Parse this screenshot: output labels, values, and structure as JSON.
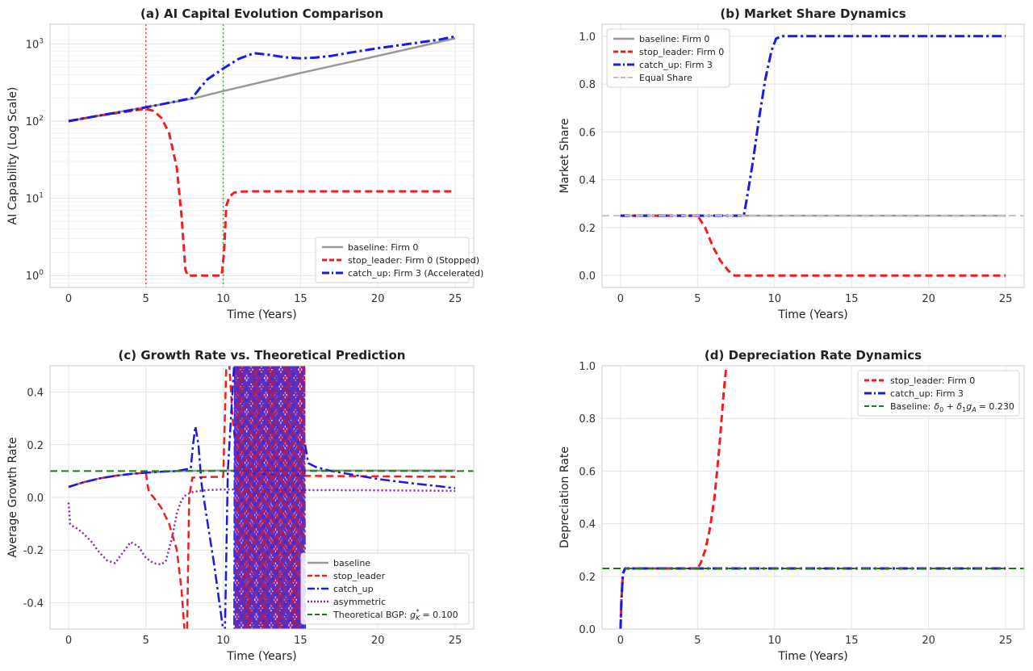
{
  "chart_data": [
    {
      "id": "a",
      "type": "line",
      "title": "(a) AI Capital Evolution Comparison",
      "xlabel": "Time (Years)",
      "ylabel": "AI Capability (Log Scale)",
      "yscale": "log",
      "xlim": [
        -1.2,
        26.2
      ],
      "ylim": [
        0.7,
        1800
      ],
      "xticks": [
        0,
        5,
        10,
        15,
        20,
        25
      ],
      "xtick_labels": [
        "0",
        "5",
        "10",
        "15",
        "20",
        "25"
      ],
      "yticks": [
        1,
        10,
        100,
        1000
      ],
      "ytick_labels": [
        "10^0",
        "10^1",
        "10^2",
        "10^3"
      ],
      "legend_position": "bottom-right",
      "vlines": [
        {
          "x": 5,
          "color": "#e8504a",
          "style": "dotted"
        },
        {
          "x": 10,
          "color": "#4caf50",
          "style": "dotted"
        }
      ],
      "series": [
        {
          "name": "baseline: Firm 0",
          "color": "#999999",
          "style": "solid",
          "width": 2.5,
          "x": [
            0,
            2,
            4,
            6,
            8,
            10,
            15,
            20,
            25
          ],
          "y": [
            100,
            118,
            140,
            165,
            195,
            245,
            420,
            700,
            1180
          ]
        },
        {
          "name": "stop_leader: Firm 0 (Stopped)",
          "color": "#f01e1e",
          "style": "dashed",
          "width": 3,
          "x": [
            0,
            2,
            4,
            5,
            5.5,
            6,
            6.5,
            7,
            7.3,
            7.55,
            7.7,
            8,
            9,
            9.9,
            10.05,
            10.2,
            10.4,
            10.7,
            11,
            12,
            15,
            20,
            25
          ],
          "y": [
            100,
            118,
            135,
            145,
            135,
            110,
            70,
            25,
            6,
            1.2,
            1,
            1,
            1,
            1,
            2,
            8,
            10.5,
            11.8,
            12.2,
            12.3,
            12.3,
            12.3,
            12.3
          ]
        },
        {
          "name": "catch_up: Firm 3 (Accelerated)",
          "color": "#1a1ae6",
          "style": "dashdot",
          "width": 3,
          "x": [
            0,
            2,
            4,
            6,
            7.5,
            8,
            8.5,
            9,
            10,
            11,
            12,
            13,
            14,
            15,
            16,
            17,
            18,
            20,
            22,
            24,
            25
          ],
          "y": [
            100,
            118,
            138,
            165,
            190,
            200,
            270,
            350,
            480,
            640,
            760,
            720,
            670,
            650,
            665,
            700,
            760,
            880,
            1000,
            1140,
            1250
          ]
        }
      ]
    },
    {
      "id": "b",
      "type": "line",
      "title": "(b) Market Share Dynamics",
      "xlabel": "Time (Years)",
      "ylabel": "Market Share",
      "xlim": [
        -1.2,
        26.2
      ],
      "ylim": [
        -0.05,
        1.05
      ],
      "xticks": [
        0,
        5,
        10,
        15,
        20,
        25
      ],
      "xtick_labels": [
        "0",
        "5",
        "10",
        "15",
        "20",
        "25"
      ],
      "yticks": [
        0.0,
        0.2,
        0.4,
        0.6,
        0.8,
        1.0
      ],
      "ytick_labels": [
        "0.0",
        "0.2",
        "0.4",
        "0.6",
        "0.8",
        "1.0"
      ],
      "legend_position": "top-left",
      "series": [
        {
          "name": "baseline: Firm 0",
          "color": "#999999",
          "style": "solid",
          "width": 2.5,
          "x": [
            0,
            25
          ],
          "y": [
            0.25,
            0.25
          ]
        },
        {
          "name": "stop_leader: Firm 0",
          "color": "#f01e1e",
          "style": "dashed",
          "width": 3,
          "x": [
            0,
            5,
            5.5,
            6,
            6.5,
            7,
            7.4,
            8,
            25
          ],
          "y": [
            0.25,
            0.25,
            0.2,
            0.12,
            0.06,
            0.02,
            0.0,
            0.0,
            0.0
          ]
        },
        {
          "name": "catch_up: Firm 3",
          "color": "#1a1ae6",
          "style": "dashdot",
          "width": 3,
          "x": [
            0,
            8,
            8.2,
            8.6,
            9,
            9.4,
            9.8,
            10.1,
            10.5,
            25
          ],
          "y": [
            0.25,
            0.25,
            0.32,
            0.48,
            0.66,
            0.82,
            0.94,
            0.99,
            1.0,
            1.0
          ]
        },
        {
          "name": "Equal Share",
          "color": "#c2c2c2",
          "style": "dashed",
          "width": 2,
          "x": [
            -1.2,
            26.2
          ],
          "y": [
            0.25,
            0.25
          ]
        }
      ]
    },
    {
      "id": "c",
      "type": "line",
      "title": "(c) Growth Rate vs. Theoretical Prediction",
      "xlabel": "Time (Years)",
      "ylabel": "Average Growth Rate",
      "xlim": [
        -1.2,
        26.2
      ],
      "ylim": [
        -0.5,
        0.5
      ],
      "xticks": [
        0,
        5,
        10,
        15,
        20,
        25
      ],
      "xtick_labels": [
        "0",
        "5",
        "10",
        "15",
        "20",
        "25"
      ],
      "yticks": [
        -0.4,
        -0.2,
        0.0,
        0.2,
        0.4
      ],
      "ytick_labels": [
        "-0.4",
        "-0.2",
        "0.0",
        "0.2",
        "0.4"
      ],
      "legend_position": "bottom-right",
      "oscillation": {
        "series": "catch_up",
        "x_start": 10.7,
        "x_end": 15.3,
        "low": -0.5,
        "high": 0.5
      },
      "series": [
        {
          "name": "baseline",
          "color": "#999999",
          "style": "solid",
          "width": 2.5,
          "x": [
            0,
            1,
            2,
            3,
            4,
            5,
            6,
            7,
            8,
            10,
            15,
            20,
            25
          ],
          "y": [
            0.04,
            0.058,
            0.072,
            0.082,
            0.089,
            0.094,
            0.098,
            0.1,
            0.101,
            0.102,
            0.102,
            0.102,
            0.102
          ]
        },
        {
          "name": "stop_leader",
          "color": "#f01e1e",
          "style": "dashed",
          "width": 2.5,
          "x": [
            0,
            1,
            2,
            3,
            4,
            5,
            5.1,
            5.2,
            5.5,
            6,
            6.5,
            7,
            7.3,
            7.55,
            7.65,
            7.8,
            8,
            9,
            10,
            10.2,
            10.3,
            10.4,
            10.6,
            10.8,
            11,
            11.5,
            12,
            15,
            20,
            25
          ],
          "y": [
            0.04,
            0.058,
            0.072,
            0.082,
            0.089,
            0.094,
            0.05,
            0.02,
            0.0,
            -0.04,
            -0.1,
            -0.2,
            -0.35,
            -0.55,
            -0.55,
            0.0,
            0.075,
            0.078,
            0.078,
            0.5,
            0.55,
            0.5,
            0.3,
            0.2,
            0.14,
            0.1,
            0.09,
            0.082,
            0.08,
            0.078
          ]
        },
        {
          "name": "catch_up",
          "color": "#1a1ae6",
          "style": "dashdot",
          "width": 2.5,
          "x": [
            0,
            1,
            2,
            3,
            4,
            5,
            6,
            7,
            7.9,
            8.05,
            8.2,
            8.4,
            8.6,
            9,
            9.4,
            9.8,
            10.1,
            10.3,
            10.7
          ],
          "y": [
            0.04,
            0.058,
            0.072,
            0.082,
            0.089,
            0.094,
            0.098,
            0.1,
            0.11,
            0.2,
            0.27,
            0.2,
            0.05,
            -0.1,
            -0.25,
            -0.42,
            -0.55,
            0.1,
            0.5
          ],
          "tail_x": [
            15.3,
            15.5,
            16,
            17,
            18,
            20,
            22,
            24,
            25
          ],
          "tail_y": [
            0.2,
            0.13,
            0.115,
            0.1,
            0.09,
            0.07,
            0.055,
            0.042,
            0.035
          ]
        },
        {
          "name": "asymmetric",
          "color": "#8e24aa",
          "style": "dotted",
          "width": 2.5,
          "x": [
            0,
            0.1,
            0.3,
            0.6,
            1,
            1.5,
            2,
            2.5,
            3,
            3.5,
            4,
            4.5,
            5,
            5.5,
            6,
            6.3,
            6.7,
            7,
            7.3,
            7.6,
            8,
            8.5,
            9,
            10,
            12,
            15,
            20,
            25
          ],
          "y": [
            -0.02,
            -0.1,
            -0.11,
            -0.12,
            -0.14,
            -0.17,
            -0.21,
            -0.24,
            -0.25,
            -0.21,
            -0.17,
            -0.185,
            -0.23,
            -0.25,
            -0.255,
            -0.24,
            -0.15,
            -0.06,
            -0.01,
            0.01,
            0.02,
            0.025,
            0.028,
            0.03,
            0.03,
            0.028,
            0.027,
            0.025
          ]
        },
        {
          "name": "Theoretical BGP: g_K* = 0.100",
          "color": "#1b7a1b",
          "style": "dashed",
          "width": 2,
          "x": [
            -1.2,
            26.2
          ],
          "y": [
            0.1,
            0.1
          ]
        }
      ],
      "legend_labels": [
        "baseline",
        "stop_leader",
        "catch_up",
        "asymmetric",
        "Theoretical BGP:",
        "= 0.100"
      ],
      "bgp_symbol": "g",
      "bgp_sub": "K",
      "bgp_sup": "*"
    },
    {
      "id": "d",
      "type": "line",
      "title": "(d) Depreciation Rate Dynamics",
      "xlabel": "Time (Years)",
      "ylabel": "Depreciation Rate",
      "xlim": [
        -1.2,
        26.2
      ],
      "ylim": [
        0.0,
        1.0
      ],
      "xticks": [
        0,
        5,
        10,
        15,
        20,
        25
      ],
      "xtick_labels": [
        "0",
        "5",
        "10",
        "15",
        "20",
        "25"
      ],
      "yticks": [
        0.0,
        0.2,
        0.4,
        0.6,
        0.8,
        1.0
      ],
      "ytick_labels": [
        "0.0",
        "0.2",
        "0.4",
        "0.6",
        "0.8",
        "1.0"
      ],
      "legend_position": "top-right",
      "series": [
        {
          "name": "stop_leader: Firm 0",
          "color": "#f01e1e",
          "style": "dashed",
          "width": 3,
          "x": [
            0,
            0.05,
            0.15,
            0.3,
            5,
            5.2,
            5.5,
            5.8,
            6.1,
            6.4,
            6.7,
            6.9
          ],
          "y": [
            0.0,
            0.1,
            0.21,
            0.23,
            0.23,
            0.25,
            0.3,
            0.38,
            0.5,
            0.68,
            0.9,
            1.02
          ]
        },
        {
          "name": "catch_up: Firm 3",
          "color": "#1a1ae6",
          "style": "dashdot",
          "width": 3,
          "x": [
            0,
            0.05,
            0.15,
            0.3,
            25
          ],
          "y": [
            0.0,
            0.1,
            0.21,
            0.23,
            0.23
          ]
        },
        {
          "name": "Baseline: δ0 + δ1 gA = 0.230",
          "color": "#1b7a1b",
          "style": "dashed",
          "width": 2,
          "x": [
            -1.2,
            26.2
          ],
          "y": [
            0.23,
            0.23
          ]
        }
      ],
      "legend_labels": [
        "stop_leader: Firm 0",
        "catch_up: Firm 3",
        "Baseline:",
        "= 0.230"
      ]
    }
  ]
}
